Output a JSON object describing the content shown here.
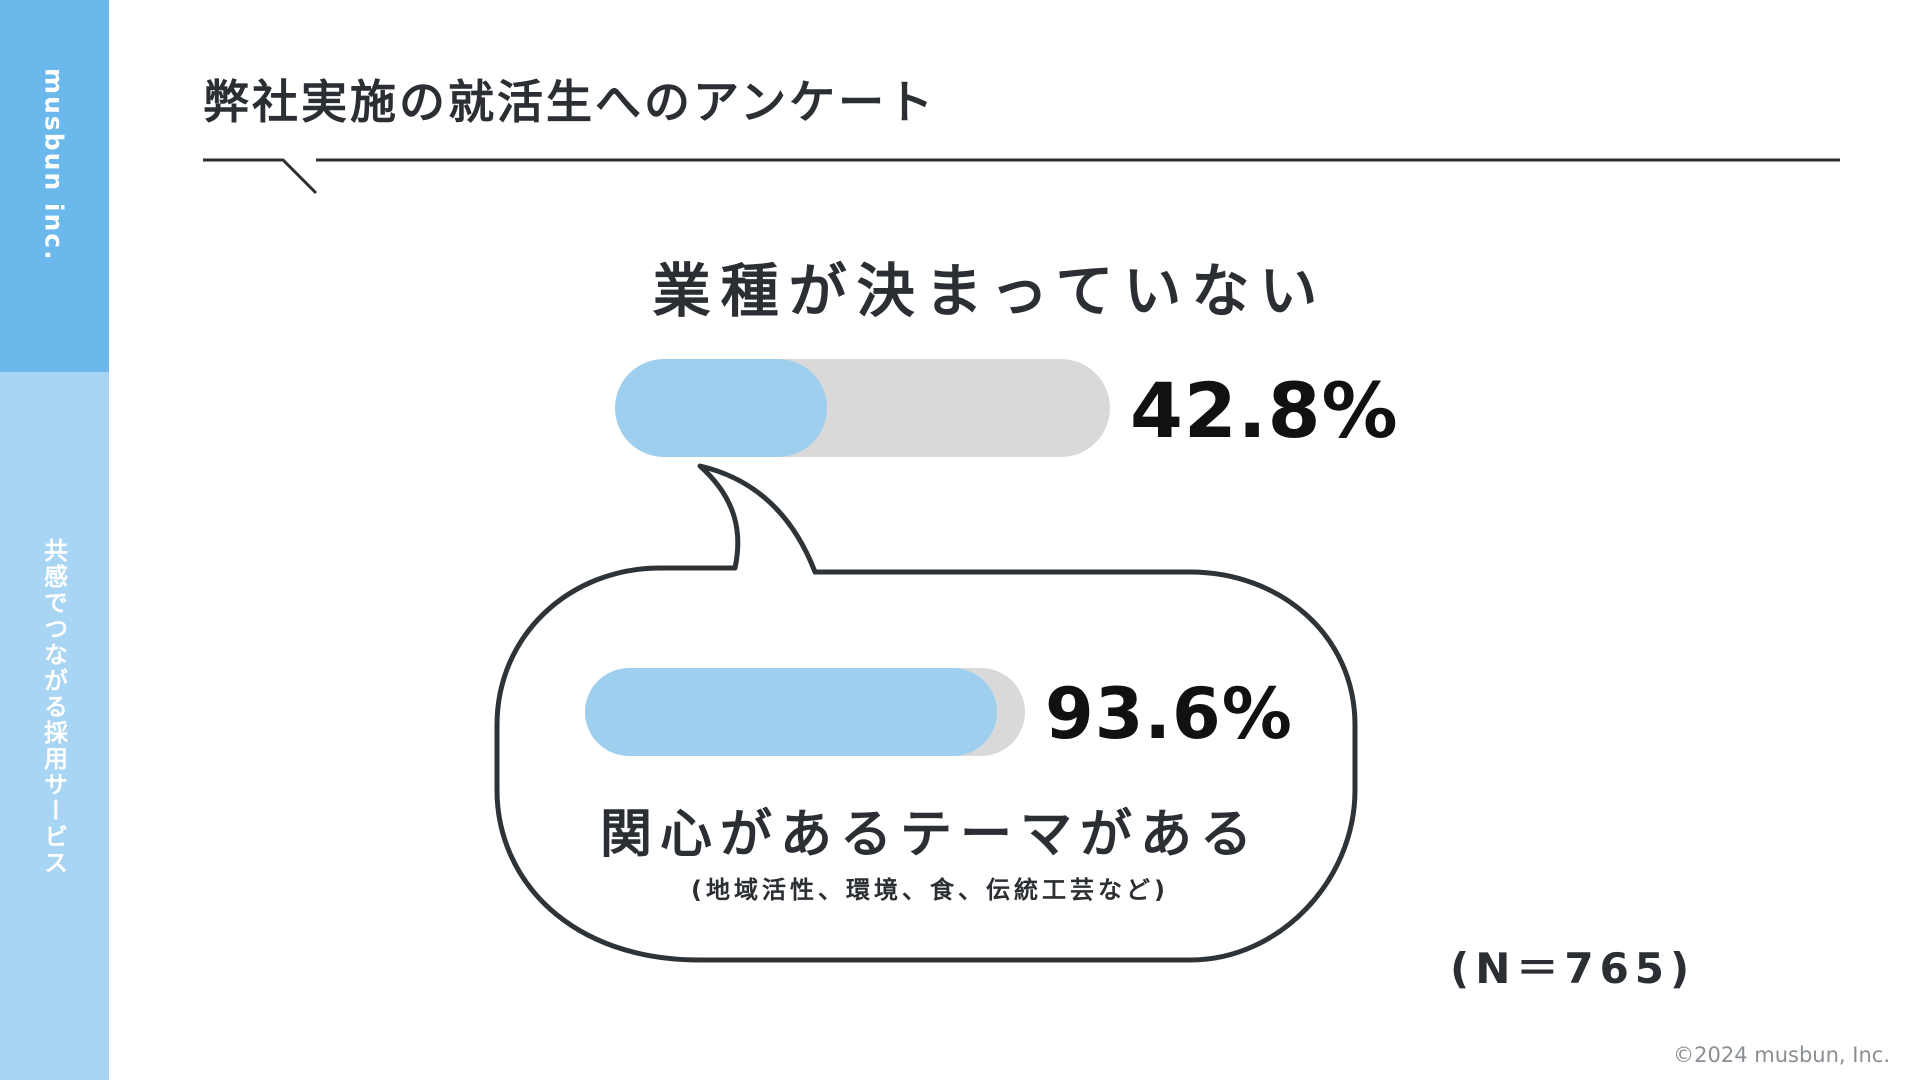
{
  "sidebar": {
    "company": "musbun inc.",
    "tagline": "共感でつながる採用サービス",
    "colors": {
      "top": "#6ab8ec",
      "bottom": "#a7d5f3"
    }
  },
  "header": {
    "title": "弊社実施の就活生へのアンケート"
  },
  "stats": [
    {
      "label": "業種が決まっていない",
      "value_text": "42.8%",
      "value": 42.8
    },
    {
      "label": "関心があるテーマがある",
      "sublabel": "(地域活性、環境、食、伝統工芸など)",
      "value_text": "93.6%",
      "value": 93.6
    }
  ],
  "sample_size": "(N＝765)",
  "footer": {
    "copyright": "©2024 musbun, Inc."
  },
  "colors": {
    "bar_fill": "#9ecfef",
    "bar_track": "#d9d9d9",
    "text": "#2b2f33"
  }
}
